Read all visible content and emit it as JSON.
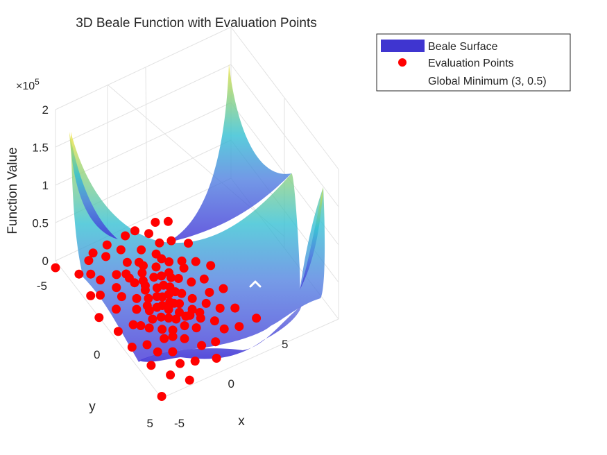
{
  "chart_data": {
    "type": "surface3d",
    "title": "3D Beale Function with Evaluation Points",
    "xlabel": "x",
    "ylabel": "y",
    "zlabel": "Function Value",
    "z_exponent_label": "×10",
    "z_exponent": "5",
    "xlim": [
      -5,
      5
    ],
    "ylim": [
      -5,
      5
    ],
    "zlim": [
      0,
      200000
    ],
    "x_ticks": [
      "-5",
      "0",
      "5"
    ],
    "y_ticks": [
      "-5",
      "0",
      "5"
    ],
    "z_ticks": [
      "0",
      "0.5",
      "1",
      "1.5",
      "2"
    ],
    "grid": true,
    "legend_position": "top-right",
    "legend": [
      {
        "label": "Beale Surface",
        "marker": "patch",
        "color": "#3f35d0"
      },
      {
        "label": "Evaluation Points",
        "marker": "circle",
        "color": "#ff0000"
      },
      {
        "label": "Global Minimum (3, 0.5)",
        "marker": "none",
        "color": "#ffffff"
      }
    ],
    "colors": {
      "surface_low": "#3f2fd6",
      "surface_mid": "#2fb8d4",
      "surface_high": "#f5e838",
      "points": "#ff0000",
      "minimum_marker": "#ffffff"
    },
    "global_minimum": {
      "x": 3,
      "y": 0.5,
      "z": 0
    },
    "points": [
      [
        -5,
        -5
      ],
      [
        -3.9,
        -3.9
      ],
      [
        -3.2,
        -3.5
      ],
      [
        -2.7,
        -4.2
      ],
      [
        -2.1,
        -4.4
      ],
      [
        -1.5,
        -3.8
      ],
      [
        -0.9,
        -4.3
      ],
      [
        -0.3,
        -3.6
      ],
      [
        0.6,
        -4.1
      ],
      [
        1.4,
        -4.0
      ],
      [
        2.1,
        -3.4
      ],
      [
        3.0,
        -3.7
      ],
      [
        3.8,
        -3.3
      ],
      [
        -4.2,
        -2.5
      ],
      [
        -3.6,
        -2.2
      ],
      [
        -2.9,
        -2.9
      ],
      [
        -2.3,
        -2.0
      ],
      [
        -1.7,
        -2.6
      ],
      [
        -1.1,
        -2.3
      ],
      [
        -0.5,
        -2.8
      ],
      [
        0.2,
        -2.4
      ],
      [
        0.9,
        -2.9
      ],
      [
        1.6,
        -2.2
      ],
      [
        2.3,
        -2.6
      ],
      [
        3.1,
        -2.3
      ],
      [
        4.0,
        -1.6
      ],
      [
        -4.7,
        -1.2
      ],
      [
        -3.3,
        -1.0
      ],
      [
        -2.4,
        -1.4
      ],
      [
        -1.6,
        -0.8
      ],
      [
        -1.0,
        -1.6
      ],
      [
        -0.5,
        -1.1
      ],
      [
        -0.1,
        -1.8
      ],
      [
        0.4,
        -1.2
      ],
      [
        1.0,
        -1.6
      ],
      [
        1.5,
        -0.9
      ],
      [
        2.0,
        -1.4
      ],
      [
        2.8,
        -1.0
      ],
      [
        3.6,
        -0.5
      ],
      [
        -4.2,
        0.1
      ],
      [
        -3.0,
        0.3
      ],
      [
        -2.1,
        -0.3
      ],
      [
        -1.4,
        0.2
      ],
      [
        -0.9,
        -0.4
      ],
      [
        -0.4,
        0.4
      ],
      [
        0.1,
        -0.6
      ],
      [
        0.5,
        0.1
      ],
      [
        0.9,
        -0.2
      ],
      [
        1.3,
        0.5
      ],
      [
        1.8,
        -0.3
      ],
      [
        2.4,
        0.3
      ],
      [
        3.3,
        0.6
      ],
      [
        4.3,
        0.2
      ],
      [
        -4.1,
        1.3
      ],
      [
        -3.1,
        1.7
      ],
      [
        -2.2,
        1.0
      ],
      [
        -1.5,
        1.5
      ],
      [
        -1.0,
        0.9
      ],
      [
        -0.6,
        1.2
      ],
      [
        -0.2,
        0.8
      ],
      [
        0.3,
        1.3
      ],
      [
        0.7,
        0.9
      ],
      [
        1.2,
        1.6
      ],
      [
        1.7,
        1.1
      ],
      [
        2.3,
        1.8
      ],
      [
        3.0,
        1.4
      ],
      [
        4.0,
        1.7
      ],
      [
        -3.8,
        2.8
      ],
      [
        -2.8,
        2.4
      ],
      [
        -1.9,
        2.9
      ],
      [
        -1.2,
        2.2
      ],
      [
        -0.6,
        2.7
      ],
      [
        0.0,
        2.1
      ],
      [
        0.6,
        2.6
      ],
      [
        1.3,
        2.3
      ],
      [
        2.0,
        2.9
      ],
      [
        2.9,
        2.5
      ],
      [
        3.8,
        3.0
      ],
      [
        -3.1,
        3.9
      ],
      [
        -2.0,
        3.7
      ],
      [
        -1.0,
        4.1
      ],
      [
        0.1,
        3.6
      ],
      [
        1.1,
        3.9
      ],
      [
        2.2,
        3.6
      ],
      [
        3.2,
        4.0
      ],
      [
        -4.6,
        4.6
      ],
      [
        -2.2,
        4.8
      ],
      [
        0.4,
        4.7
      ],
      [
        4.6,
        4.2
      ],
      [
        -1.3,
        -0.1
      ],
      [
        -0.8,
        0.3
      ],
      [
        -0.3,
        -0.2
      ],
      [
        0.2,
        0.5
      ],
      [
        0.6,
        -0.5
      ],
      [
        1.0,
        0.2
      ],
      [
        -0.7,
        -0.9
      ],
      [
        0.0,
        0.0
      ],
      [
        0.4,
        0.7
      ],
      [
        -0.2,
        1.5
      ],
      [
        0.8,
        1.8
      ],
      [
        -1.6,
        0.7
      ],
      [
        1.4,
        -0.6
      ],
      [
        -0.4,
        -1.4
      ],
      [
        0.9,
        -1.0
      ],
      [
        -1.1,
        -2.0
      ],
      [
        0.3,
        -2.1
      ],
      [
        1.7,
        -1.8
      ],
      [
        -2.6,
        0.6
      ],
      [
        2.6,
        -0.6
      ],
      [
        -1.8,
        2.0
      ],
      [
        1.5,
        2.0
      ],
      [
        -0.9,
        1.9
      ],
      [
        0.5,
        1.7
      ]
    ]
  }
}
